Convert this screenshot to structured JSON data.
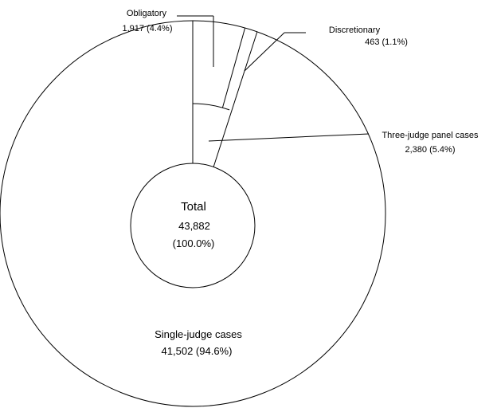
{
  "chart_data": {
    "type": "pie",
    "title": "",
    "center": {
      "label": "Total",
      "value": "43,882",
      "percent": "(100.0%)",
      "total": 43882
    },
    "slices": [
      {
        "name": "Single-judge cases",
        "value": 41502,
        "value_text": "41,502",
        "percent": 94.6,
        "percent_text": "(94.6%)"
      },
      {
        "name": "Three-judge panel cases",
        "value": 2380,
        "value_text": "2,380",
        "percent": 5.4,
        "percent_text": "(5.4%)",
        "sub_slices": [
          {
            "name": "Obligatory",
            "value": 1917,
            "value_text": "1,917",
            "percent": 4.4,
            "percent_text": "(4.4%)"
          },
          {
            "name": "Discretionary",
            "value": 463,
            "value_text": "463",
            "percent": 1.1,
            "percent_text": "(1.1%)"
          }
        ]
      }
    ],
    "colors": {
      "stroke": "#000000",
      "fill": "#ffffff"
    }
  }
}
